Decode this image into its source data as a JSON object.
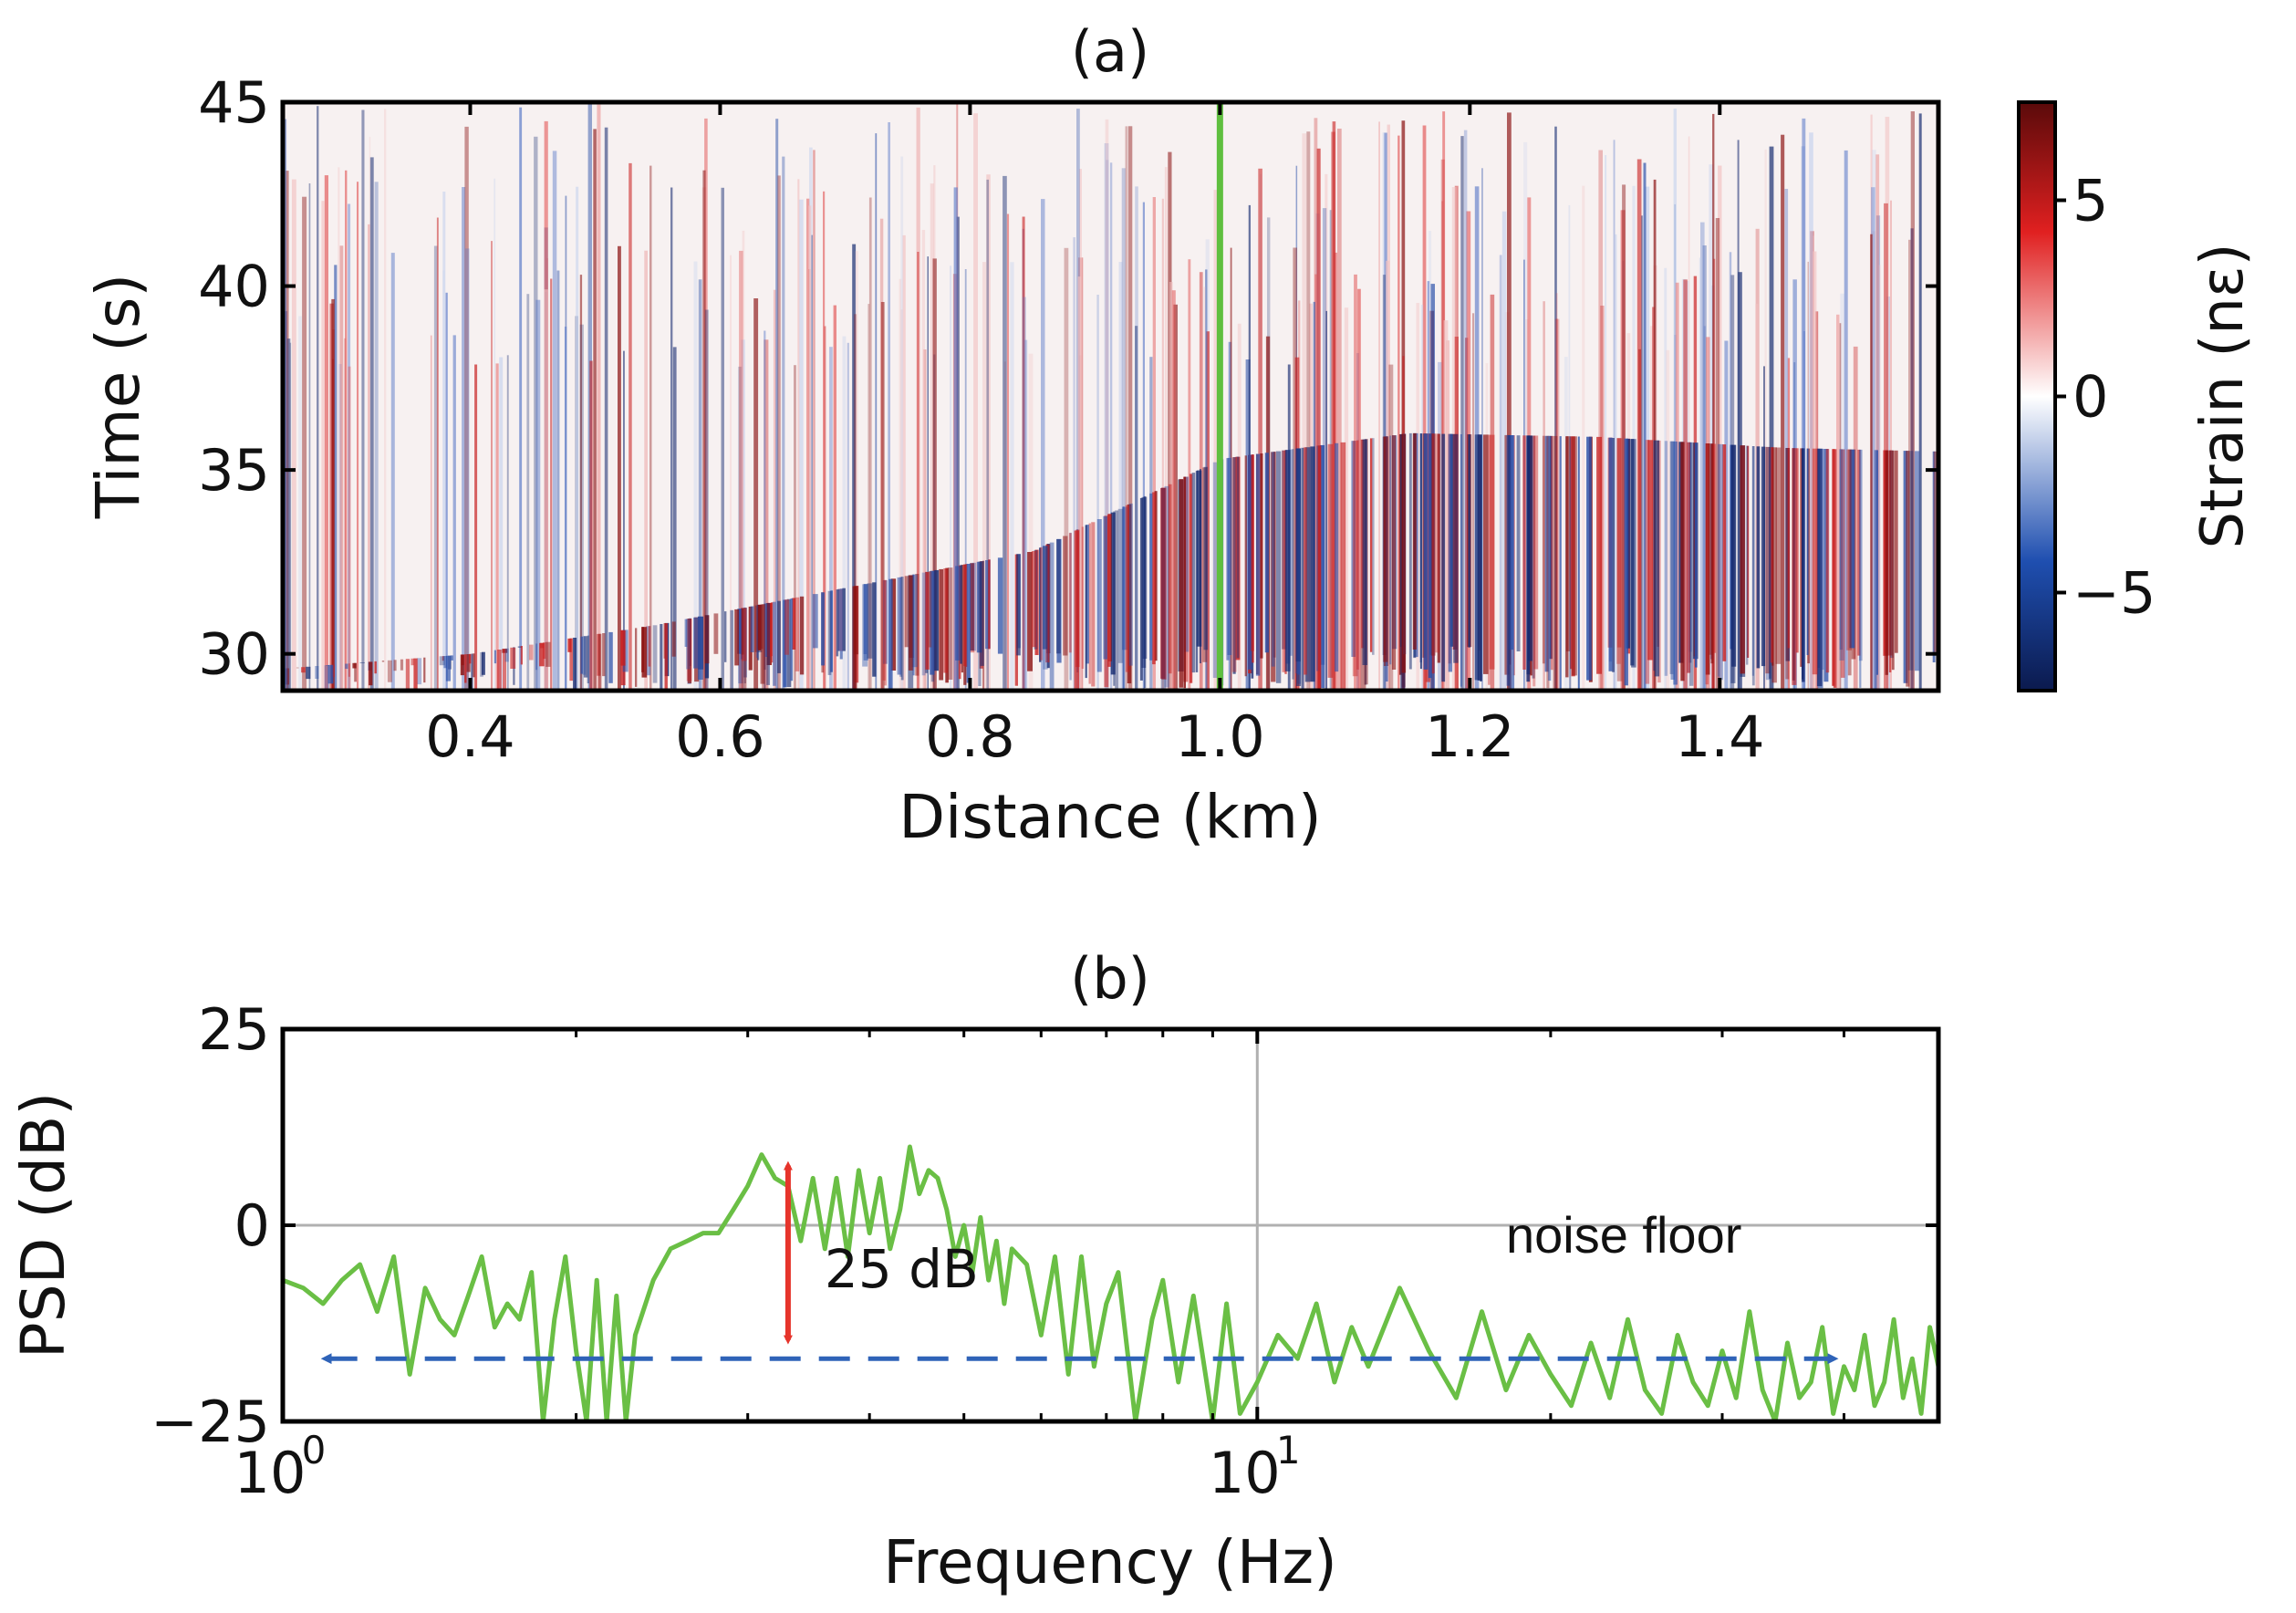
{
  "chart_data": [
    {
      "type": "heatmap",
      "panel_label": "(a)",
      "title": "(a)",
      "xlabel": "Distance (km)",
      "ylabel": "Time (s)",
      "xlim": [
        0.25,
        1.575
      ],
      "ylim": [
        29.0,
        45.0
      ],
      "x_ticks": [
        0.4,
        0.6,
        0.8,
        1.0,
        1.2,
        1.4
      ],
      "x_tick_labels": [
        "0.4",
        "0.6",
        "0.8",
        "1.0",
        "1.2",
        "1.4"
      ],
      "y_ticks": [
        30,
        35,
        40,
        45
      ],
      "y_tick_labels": [
        "30",
        "35",
        "40",
        "45"
      ],
      "marker_line": {
        "x": 1.0,
        "color": "#5fbf3f"
      },
      "colorbar": {
        "label": "Strain (nε)",
        "range": [
          -7.5,
          7.5
        ],
        "ticks": [
          -5,
          0,
          5
        ],
        "tick_labels": [
          "−5",
          "0",
          "5"
        ],
        "colormap": "seismic",
        "colors": [
          "#0b1a4e",
          "#1f4fb0",
          "#ffffff",
          "#e02020",
          "#5a0a0a"
        ]
      },
      "event_front": [
        {
          "x": 0.25,
          "t": 29.6
        },
        {
          "x": 0.4,
          "t": 30.0
        },
        {
          "x": 0.55,
          "t": 30.8
        },
        {
          "x": 0.7,
          "t": 31.8
        },
        {
          "x": 0.85,
          "t": 32.8
        },
        {
          "x": 1.0,
          "t": 35.3
        },
        {
          "x": 1.15,
          "t": 36.0
        },
        {
          "x": 1.3,
          "t": 35.9
        },
        {
          "x": 1.45,
          "t": 35.6
        },
        {
          "x": 1.575,
          "t": 35.5
        }
      ]
    },
    {
      "type": "line",
      "panel_label": "(b)",
      "title": "(b)",
      "xlabel": "Frequency (Hz)",
      "ylabel": "PSD (dB)",
      "xscale": "log",
      "xlim": [
        1.0,
        50.0
      ],
      "ylim": [
        -25,
        25
      ],
      "x_tick_labels": [
        "10",
        "0",
        "10",
        "1"
      ],
      "x_major_ticks": [
        1,
        10
      ],
      "y_ticks": [
        -25,
        0,
        25
      ],
      "y_tick_labels": [
        "−25",
        "0",
        "25"
      ],
      "grid": true,
      "series": [
        {
          "name": "PSD",
          "color": "#6abf45",
          "x": [
            1.0,
            1.05,
            1.1,
            1.15,
            1.2,
            1.25,
            1.3,
            1.35,
            1.4,
            1.45,
            1.5,
            1.55,
            1.6,
            1.65,
            1.7,
            1.75,
            1.8,
            1.85,
            1.9,
            1.95,
            2.0,
            2.05,
            2.1,
            2.15,
            2.2,
            2.25,
            2.3,
            2.4,
            2.5,
            2.6,
            2.7,
            2.8,
            2.9,
            3.0,
            3.1,
            3.2,
            3.3,
            3.4,
            3.5,
            3.6,
            3.7,
            3.8,
            3.9,
            4.0,
            4.1,
            4.2,
            4.3,
            4.4,
            4.5,
            4.6,
            4.7,
            4.8,
            4.9,
            5.0,
            5.1,
            5.2,
            5.3,
            5.4,
            5.5,
            5.6,
            5.8,
            6.0,
            6.2,
            6.4,
            6.6,
            6.8,
            7.0,
            7.2,
            7.5,
            7.8,
            8.0,
            8.3,
            8.6,
            9.0,
            9.3,
            9.6,
            10.0,
            10.5,
            11.0,
            11.5,
            12.0,
            12.5,
            13.0,
            14.0,
            15.0,
            16.0,
            17.0,
            18.0,
            19.0,
            20.0,
            21.0,
            22.0,
            23.0,
            24.0,
            25.0,
            26.0,
            27.0,
            28.0,
            29.0,
            30.0,
            31.0,
            32.0,
            33.0,
            34.0,
            35.0,
            36.0,
            37.0,
            38.0,
            39.0,
            40.0,
            41.0,
            42.0,
            43.0,
            44.0,
            45.0,
            46.0,
            47.0,
            48.0,
            49.0,
            50.0
          ],
          "y": [
            -7,
            -8,
            -10,
            -7,
            -5,
            -11,
            -4,
            -19,
            -8,
            -12,
            -14,
            -9,
            -4,
            -13,
            -10,
            -12,
            -6,
            -25,
            -12,
            -4,
            -16,
            -25,
            -7,
            -25,
            -9,
            -25,
            -14,
            -7,
            -3,
            -2,
            -1,
            -1,
            2,
            5,
            9,
            6,
            5,
            -2,
            6,
            -3,
            6,
            -4,
            7,
            -1,
            6,
            -3,
            2,
            10,
            4,
            7,
            6,
            2,
            -4,
            0,
            -6,
            1,
            -7,
            -2,
            -10,
            -3,
            -5,
            -14,
            -4,
            -19,
            -4,
            -18,
            -10,
            -6,
            -25,
            -12,
            -7,
            -20,
            -9,
            -25,
            -10,
            -24,
            -20,
            -14,
            -17,
            -10,
            -20,
            -13,
            -18,
            -8,
            -16,
            -22,
            -11,
            -21,
            -14,
            -19,
            -23,
            -15,
            -22,
            -12,
            -21,
            -24,
            -14,
            -20,
            -23,
            -16,
            -22,
            -11,
            -21,
            -25,
            -15,
            -22,
            -20,
            -13,
            -24,
            -18,
            -21,
            -14,
            -23,
            -20,
            -12,
            -22,
            -17,
            -24,
            -13,
            -18
          ]
        }
      ],
      "annotations": [
        {
          "text": "25 dB",
          "kind": "double-arrow",
          "color": "#e6342b",
          "x": 3.3,
          "y_from": 9,
          "y_to": -16
        },
        {
          "text": "noise floor",
          "kind": "dashed-double-arrow",
          "color": "#2f63b8",
          "x_from": 1.08,
          "x_to": 40.0,
          "y": -17
        }
      ]
    }
  ]
}
